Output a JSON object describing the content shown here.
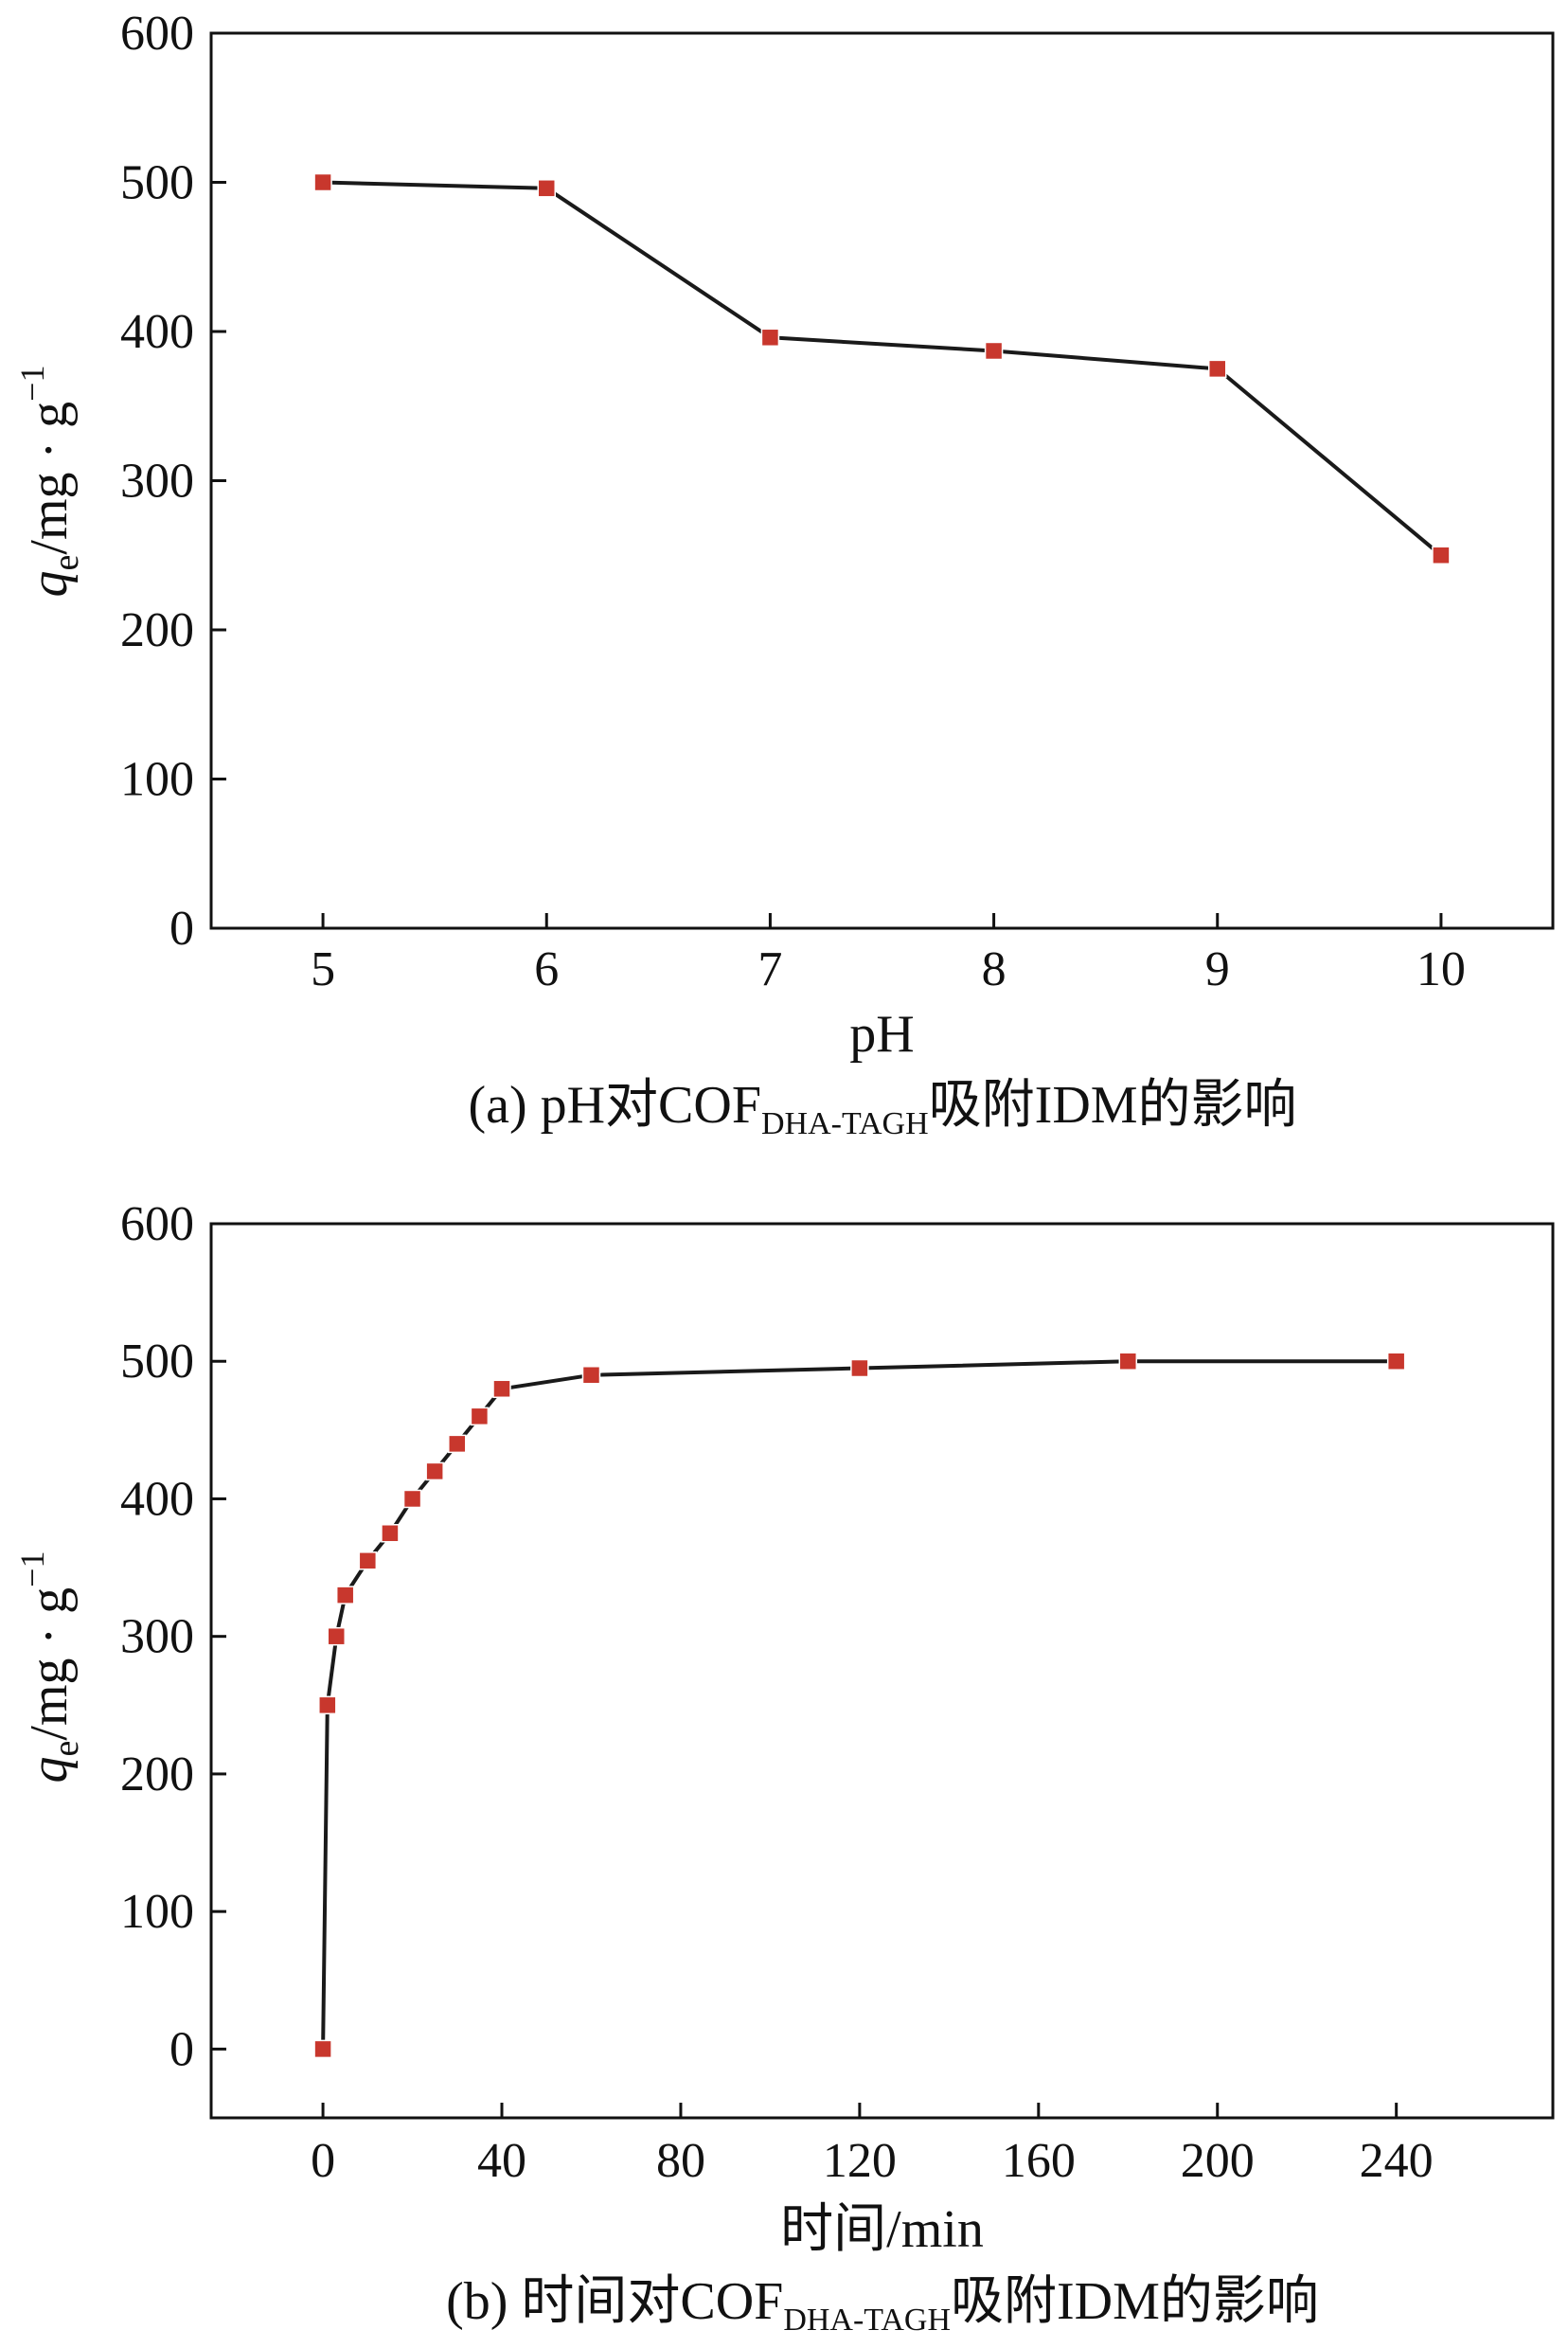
{
  "chart_data": [
    {
      "type": "line",
      "panel_label": "(a)",
      "caption_prefix": "pH对COF",
      "caption_subscript": "DHA-TAGH",
      "caption_suffix": "吸附IDM的影响",
      "xlabel": "pH",
      "ylabel_base": "q",
      "ylabel_sub": "e",
      "ylabel_rest": "/mg · g",
      "ylabel_sup": "−1",
      "xlim": [
        4.5,
        10.5
      ],
      "ylim": [
        0,
        600
      ],
      "xticks": [
        5,
        6,
        7,
        8,
        9,
        10
      ],
      "yticks": [
        0,
        100,
        200,
        300,
        400,
        500,
        600
      ],
      "grid": false,
      "marker": "square",
      "line_color": "#1a1a1a",
      "marker_color": "#c8372d",
      "x": [
        5,
        6,
        7,
        8,
        9,
        10
      ],
      "y": [
        500,
        496,
        396,
        387,
        375,
        250
      ]
    },
    {
      "type": "line",
      "panel_label": "(b)",
      "caption_prefix": "时间对COF",
      "caption_subscript": "DHA-TAGH",
      "caption_suffix": "吸附IDM的影响",
      "xlabel": "时间/min",
      "ylabel_base": "q",
      "ylabel_sub": "e",
      "ylabel_rest": "/mg · g",
      "ylabel_sup": "−1",
      "xlim": [
        -25,
        275
      ],
      "ylim": [
        -50,
        600
      ],
      "xticks": [
        0,
        40,
        80,
        120,
        160,
        200,
        240
      ],
      "yticks": [
        0,
        100,
        200,
        300,
        400,
        500,
        600
      ],
      "grid": false,
      "marker": "square",
      "line_color": "#1a1a1a",
      "marker_color": "#c8372d",
      "x": [
        0,
        1,
        3,
        5,
        10,
        15,
        20,
        25,
        30,
        35,
        40,
        60,
        120,
        180,
        240
      ],
      "y": [
        0,
        250,
        300,
        330,
        355,
        375,
        400,
        420,
        440,
        460,
        480,
        490,
        495,
        500,
        500
      ]
    }
  ]
}
